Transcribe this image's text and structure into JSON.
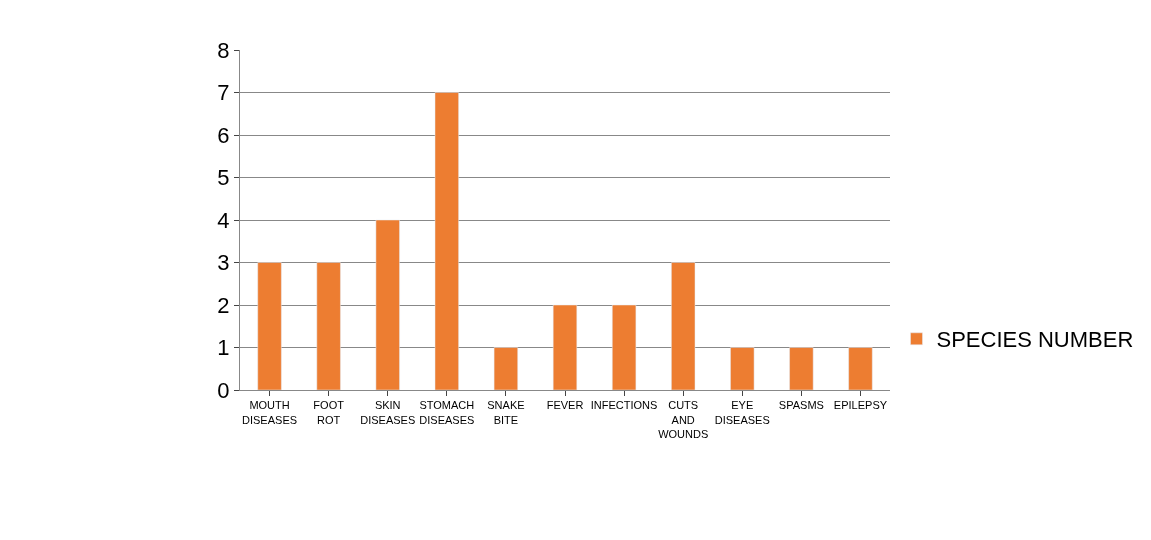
{
  "chart_data": {
    "type": "bar",
    "categories": [
      "MOUTH DISEASES",
      "FOOT ROT",
      "SKIN DISEASES",
      "STOMACH DISEASES",
      "SNAKE BITE",
      "FEVER",
      "INFECTIONS",
      "CUTS AND WOUNDS",
      "EYE DISEASES",
      "SPASMS",
      "EPILEPSY"
    ],
    "series": [
      {
        "name": "SPECIES NUMBER",
        "color": "#ed7d31",
        "values": [
          3,
          3,
          4,
          7,
          1,
          2,
          2,
          3,
          1,
          1,
          1
        ]
      }
    ],
    "ylim": [
      0,
      8
    ],
    "yticks": [
      0,
      1,
      2,
      3,
      4,
      5,
      6,
      7,
      8
    ],
    "grid": "y",
    "legend": "right"
  }
}
